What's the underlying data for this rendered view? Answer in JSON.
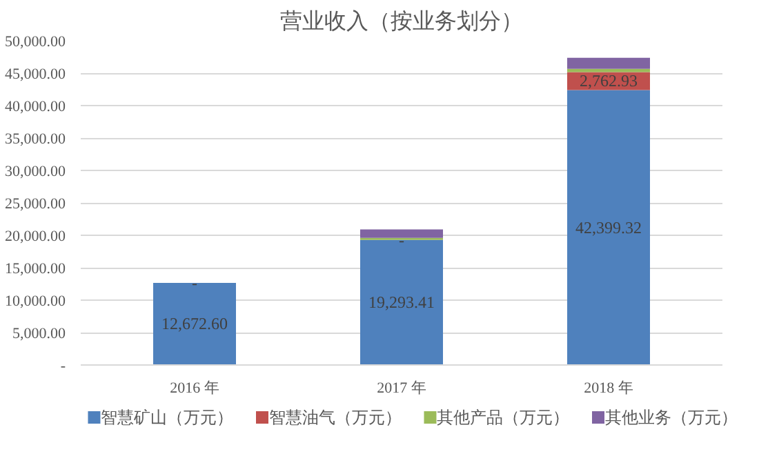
{
  "chart_data": {
    "type": "bar",
    "title": "营业收入（按业务划分）",
    "stacked": true,
    "categories": [
      "2016 年",
      "2017 年",
      "2018 年"
    ],
    "series": [
      {
        "name": "智慧矿山（万元）",
        "color": "#4f81bd",
        "values": [
          12672.6,
          19293.41,
          42399.32
        ],
        "value_labels": [
          "12,672.60",
          "19,293.41",
          "42,399.32"
        ]
      },
      {
        "name": "智慧油气（万元）",
        "color": "#c0504d",
        "values": [
          0,
          0,
          2762.93
        ],
        "value_labels": [
          "-",
          "-",
          "2,762.93"
        ]
      },
      {
        "name": "其他产品（万元）",
        "color": "#9bbb59",
        "values": [
          0,
          300,
          500
        ]
      },
      {
        "name": "其他业务（万元）",
        "color": "#8064a2",
        "values": [
          0,
          1300,
          1700
        ]
      }
    ],
    "ylim": [
      0,
      50000
    ],
    "yticks": [
      {
        "value": 0,
        "label": "-"
      },
      {
        "value": 5000,
        "label": "5,000.00"
      },
      {
        "value": 10000,
        "label": "10,000.00"
      },
      {
        "value": 15000,
        "label": "15,000.00"
      },
      {
        "value": 20000,
        "label": "20,000.00"
      },
      {
        "value": 25000,
        "label": "25,000.00"
      },
      {
        "value": 30000,
        "label": "30,000.00"
      },
      {
        "value": 35000,
        "label": "35,000.00"
      },
      {
        "value": 40000,
        "label": "40,000.00"
      },
      {
        "value": 45000,
        "label": "45,000.00"
      },
      {
        "value": 50000,
        "label": "50,000.00"
      }
    ],
    "grid": "y",
    "legend": "bottom"
  }
}
